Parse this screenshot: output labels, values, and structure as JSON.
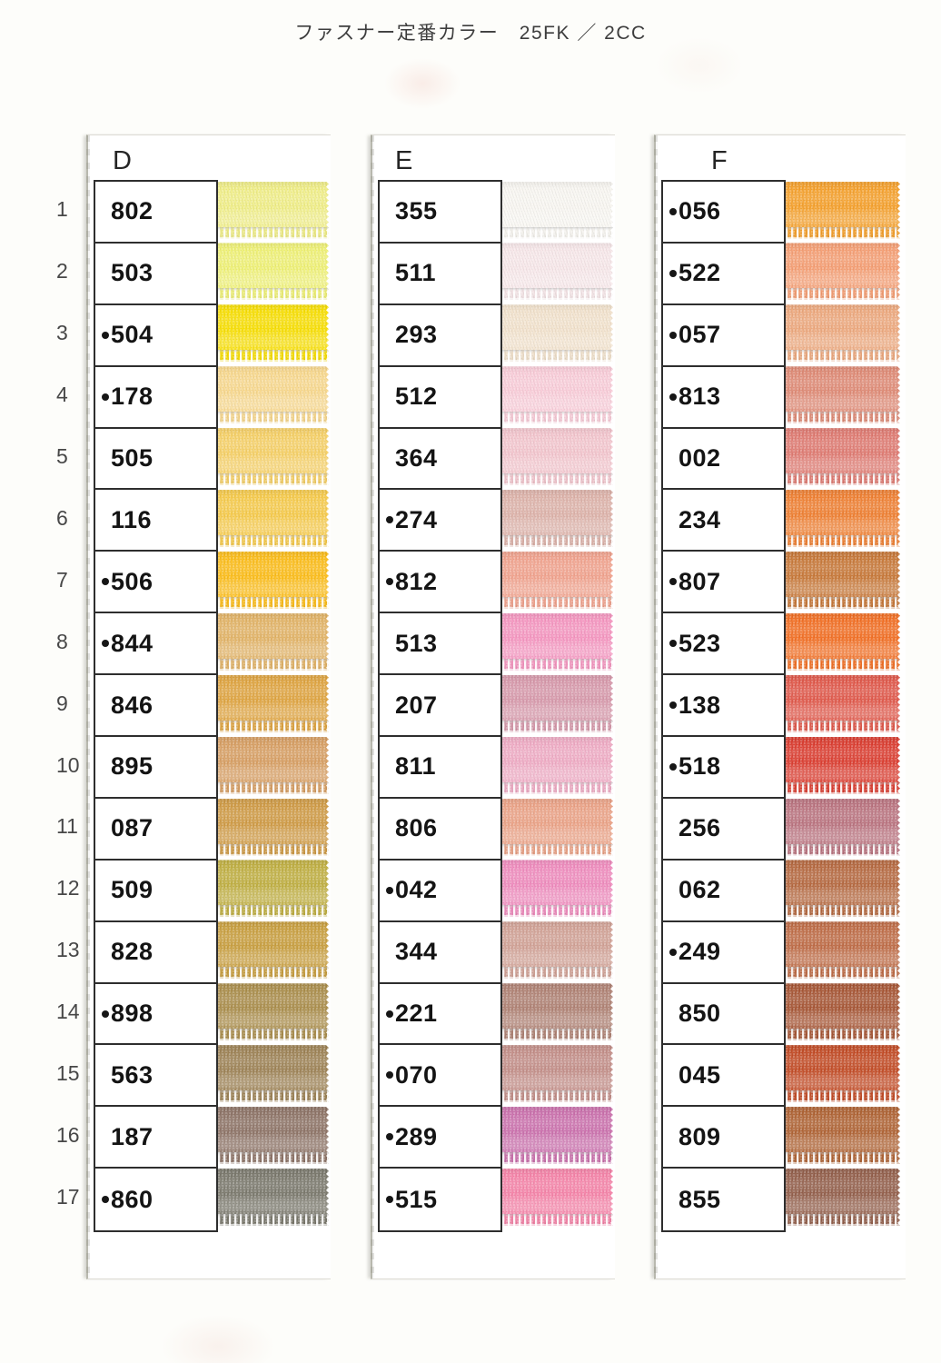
{
  "title": "ファスナー定番カラー　25FK ／ 2CC",
  "row_numbers": [
    "1",
    "2",
    "3",
    "4",
    "5",
    "6",
    "7",
    "8",
    "9",
    "10",
    "11",
    "12",
    "13",
    "14",
    "15",
    "16",
    "17"
  ],
  "columns": [
    {
      "letter": "D",
      "rows": [
        {
          "code": "802",
          "dot": false,
          "fabric": "#f0ee86"
        },
        {
          "code": "503",
          "dot": false,
          "fabric": "#eff175"
        },
        {
          "code": "504",
          "dot": true,
          "fabric": "#f8df04"
        },
        {
          "code": "178",
          "dot": true,
          "fabric": "#f8d88d"
        },
        {
          "code": "505",
          "dot": false,
          "fabric": "#f6d066"
        },
        {
          "code": "116",
          "dot": false,
          "fabric": "#f6ca4a"
        },
        {
          "code": "506",
          "dot": true,
          "fabric": "#fcbd19"
        },
        {
          "code": "844",
          "dot": true,
          "fabric": "#e2b366"
        },
        {
          "code": "846",
          "dot": false,
          "fabric": "#dfa440"
        },
        {
          "code": "895",
          "dot": false,
          "fabric": "#d79e62"
        },
        {
          "code": "087",
          "dot": false,
          "fabric": "#cf9a44"
        },
        {
          "code": "509",
          "dot": false,
          "fabric": "#bfae40"
        },
        {
          "code": "828",
          "dot": false,
          "fabric": "#c89e3e"
        },
        {
          "code": "898",
          "dot": true,
          "fabric": "#aa8d4b"
        },
        {
          "code": "563",
          "dot": false,
          "fabric": "#9d8255"
        },
        {
          "code": "187",
          "dot": false,
          "fabric": "#8d7366"
        },
        {
          "code": "860",
          "dot": true,
          "fabric": "#7a786c"
        }
      ]
    },
    {
      "letter": "E",
      "rows": [
        {
          "code": "355",
          "dot": false,
          "fabric": "#f8f6f1"
        },
        {
          "code": "511",
          "dot": false,
          "fabric": "#f7e7e9"
        },
        {
          "code": "293",
          "dot": false,
          "fabric": "#f2e2cc"
        },
        {
          "code": "512",
          "dot": false,
          "fabric": "#f9ccd8"
        },
        {
          "code": "364",
          "dot": false,
          "fabric": "#f3c5cd"
        },
        {
          "code": "274",
          "dot": true,
          "fabric": "#ddb2a9"
        },
        {
          "code": "812",
          "dot": true,
          "fabric": "#f1a28d"
        },
        {
          "code": "513",
          "dot": false,
          "fabric": "#f596c0"
        },
        {
          "code": "207",
          "dot": false,
          "fabric": "#d799ab"
        },
        {
          "code": "811",
          "dot": false,
          "fabric": "#efabc4"
        },
        {
          "code": "806",
          "dot": false,
          "fabric": "#eba286"
        },
        {
          "code": "042",
          "dot": true,
          "fabric": "#ef8bbd"
        },
        {
          "code": "344",
          "dot": false,
          "fabric": "#d1a195"
        },
        {
          "code": "221",
          "dot": true,
          "fabric": "#af8173"
        },
        {
          "code": "070",
          "dot": true,
          "fabric": "#c38e88"
        },
        {
          "code": "289",
          "dot": true,
          "fabric": "#cb71ad"
        },
        {
          "code": "515",
          "dot": true,
          "fabric": "#f583a8"
        }
      ]
    },
    {
      "letter": "F",
      "rows": [
        {
          "code": "056",
          "dot": true,
          "fabric": "#f5a02b"
        },
        {
          "code": "522",
          "dot": true,
          "fabric": "#f59e73"
        },
        {
          "code": "057",
          "dot": true,
          "fabric": "#eda87d"
        },
        {
          "code": "813",
          "dot": true,
          "fabric": "#df8a75"
        },
        {
          "code": "002",
          "dot": false,
          "fabric": "#df7a71"
        },
        {
          "code": "234",
          "dot": false,
          "fabric": "#ef7f31"
        },
        {
          "code": "807",
          "dot": true,
          "fabric": "#c77737"
        },
        {
          "code": "523",
          "dot": true,
          "fabric": "#f26f24"
        },
        {
          "code": "138",
          "dot": true,
          "fabric": "#e0584a"
        },
        {
          "code": "518",
          "dot": true,
          "fabric": "#db3d30"
        },
        {
          "code": "256",
          "dot": false,
          "fabric": "#ba737f"
        },
        {
          "code": "062",
          "dot": false,
          "fabric": "#b5683f"
        },
        {
          "code": "249",
          "dot": true,
          "fabric": "#be6b45"
        },
        {
          "code": "850",
          "dot": false,
          "fabric": "#a65534"
        },
        {
          "code": "045",
          "dot": false,
          "fabric": "#c24b25"
        },
        {
          "code": "809",
          "dot": false,
          "fabric": "#af6334"
        },
        {
          "code": "855",
          "dot": false,
          "fabric": "#935f4b"
        }
      ]
    }
  ]
}
